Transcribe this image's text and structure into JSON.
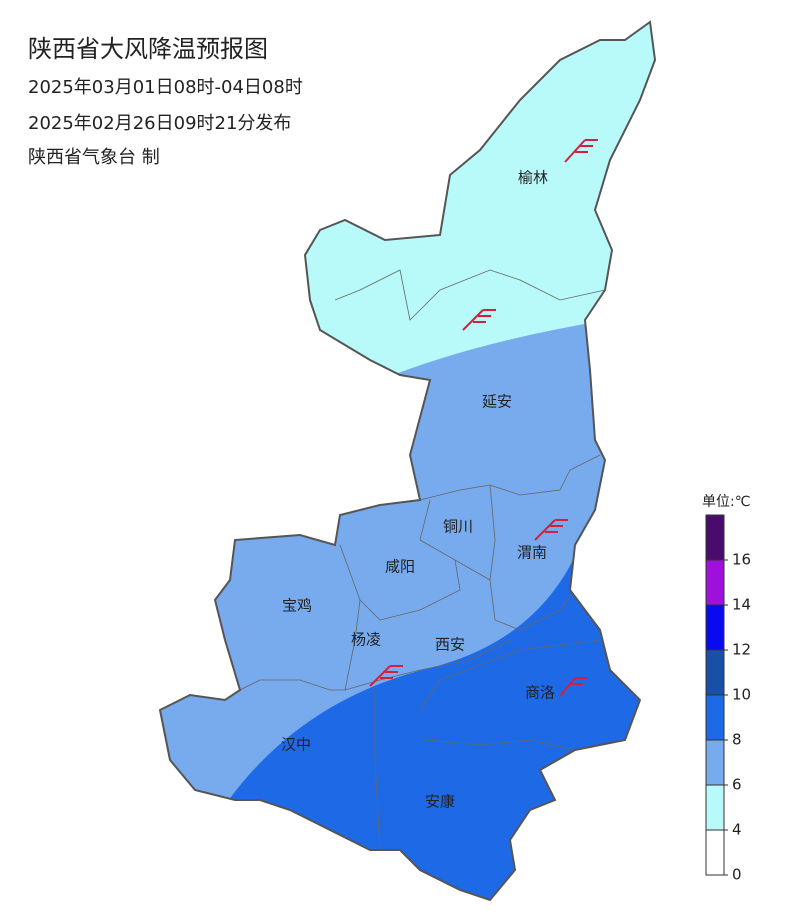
{
  "header": {
    "title": "陕西省大风降温预报图",
    "period": "2025年03月01日08时-04日08时",
    "issued": "2025年02月26日09时21分发布",
    "issuer": "陕西省气象台 制"
  },
  "cities": [
    "榆林",
    "延安",
    "铜川",
    "渭南",
    "咸阳",
    "宝鸡",
    "杨凌",
    "西安",
    "商洛",
    "汉中",
    "安康"
  ],
  "legend": {
    "title": "单位:℃",
    "ticks": [
      0,
      4,
      6,
      8,
      10,
      12,
      14,
      16
    ],
    "colors": [
      "#ffffff",
      "#b8fafa",
      "#78aaee",
      "#1e6ae6",
      "#1a4fa8",
      "#0a0af0",
      "#a010dc",
      "#4a0c6c"
    ]
  }
}
